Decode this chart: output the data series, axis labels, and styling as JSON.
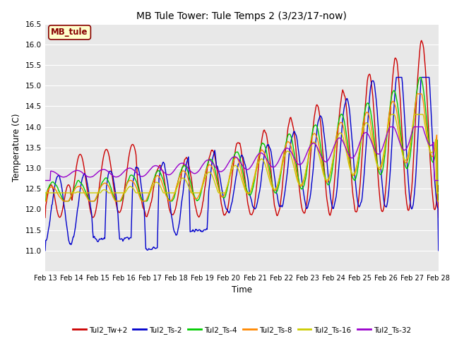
{
  "title": "MB Tule Tower: Tule Temps 2 (3/23/17-now)",
  "xlabel": "Time",
  "ylabel": "Temperature (C)",
  "ylim": [
    10.5,
    16.5
  ],
  "yticks": [
    11.0,
    11.5,
    12.0,
    12.5,
    13.0,
    13.5,
    14.0,
    14.5,
    15.0,
    15.5,
    16.0,
    16.5
  ],
  "xtick_labels": [
    "Feb 13",
    "Feb 14",
    "Feb 15",
    "Feb 16",
    "Feb 17",
    "Feb 18",
    "Feb 19",
    "Feb 20",
    "Feb 21",
    "Feb 22",
    "Feb 23",
    "Feb 24",
    "Feb 25",
    "Feb 26",
    "Feb 27",
    "Feb 28"
  ],
  "series_colors": {
    "Tul2_Tw+2": "#cc0000",
    "Tul2_Ts-2": "#0000cc",
    "Tul2_Ts-4": "#00cc00",
    "Tul2_Ts-8": "#ff8800",
    "Tul2_Ts-16": "#cccc00",
    "Tul2_Ts-32": "#9900cc"
  },
  "legend_labels": [
    "Tul2_Tw+2",
    "Tul2_Ts-2",
    "Tul2_Ts-4",
    "Tul2_Ts-8",
    "Tul2_Ts-16",
    "Tul2_Ts-32"
  ],
  "bg_color": "#e8e8e8",
  "grid_color": "#ffffff",
  "mb_tule_label": "MB_tule",
  "mb_tule_bg": "#ffffcc",
  "mb_tule_fg": "#880000",
  "n_days": 15,
  "pts_per_day": 48,
  "figsize": [
    6.4,
    4.8
  ],
  "dpi": 100
}
